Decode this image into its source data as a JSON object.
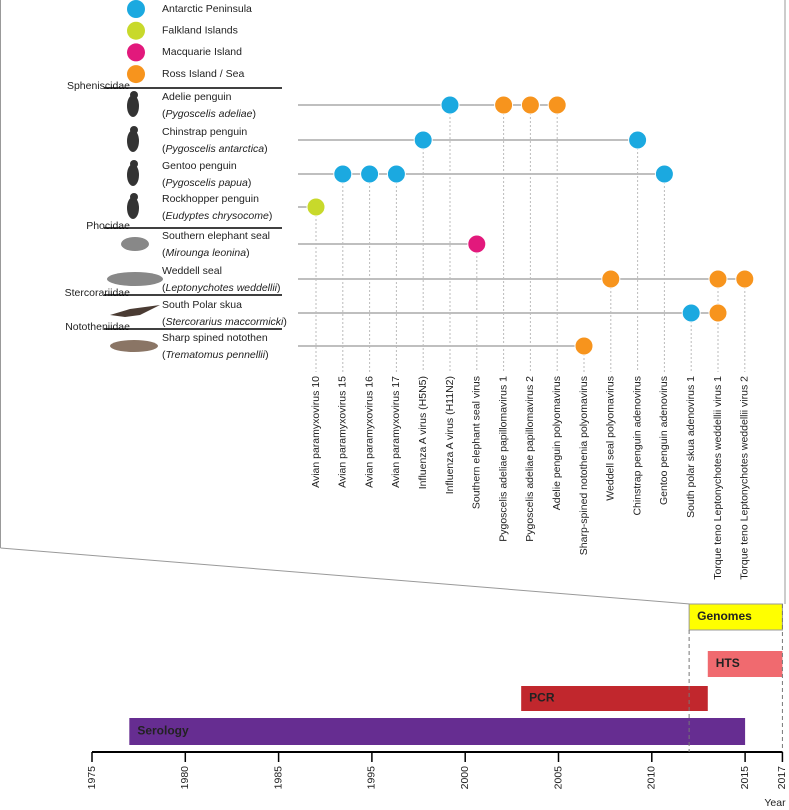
{
  "legend": [
    {
      "label": "Antarctic Peninsula",
      "color": "#1ba9e0"
    },
    {
      "label": "Falkland Islands",
      "color": "#c8d92b"
    },
    {
      "label": "Macquarie Island",
      "color": "#e2197c"
    },
    {
      "label": "Ross Island / Sea",
      "color": "#f7941d"
    }
  ],
  "viruses": [
    "Avian paramyxovirus 10",
    "Avian paramyxovirus 15",
    "Avian paramyxovirus 16",
    "Avian paramyxovirus 17",
    "Influenza A virus (H5N5)",
    "Influenza A virus (H11N2)",
    "Southern elephant seal virus",
    "Pygoscelis adeliae papillomavirus 1",
    "Pygoscelis adeliae papillomavirus 2",
    "Adelie penguin polyomavirus",
    "Sharp-spined notothenia polyomavirus",
    "Weddell seal polyomavirus",
    "Chinstrap penguin adenovirus",
    "Gentoo penguin adenovirus",
    "South polar skua adenovirus 1",
    "Torque teno Leptonychotes weddellii virus 1",
    "Torque teno Leptonychotes weddellii virus 2"
  ],
  "families": [
    {
      "name": "Spheniscidae",
      "species": [
        {
          "common": "Adelie penguin",
          "latin": "Pygoscelis adeliae",
          "detections": [
            {
              "virus": "Influenza A virus (H11N2)",
              "location": "Antarctic Peninsula"
            },
            {
              "virus": "Pygoscelis adeliae papillomavirus 1",
              "location": "Ross Island / Sea"
            },
            {
              "virus": "Pygoscelis adeliae papillomavirus 2",
              "location": "Ross Island / Sea"
            },
            {
              "virus": "Adelie penguin polyomavirus",
              "location": "Ross Island / Sea"
            }
          ]
        },
        {
          "common": "Chinstrap penguin",
          "latin": "Pygoscelis antarctica",
          "detections": [
            {
              "virus": "Influenza A virus (H5N5)",
              "location": "Antarctic Peninsula"
            },
            {
              "virus": "Chinstrap penguin adenovirus",
              "location": "Antarctic Peninsula"
            }
          ]
        },
        {
          "common": "Gentoo penguin",
          "latin": "Pygoscelis papua",
          "detections": [
            {
              "virus": "Avian paramyxovirus 15",
              "location": "Antarctic Peninsula"
            },
            {
              "virus": "Avian paramyxovirus 16",
              "location": "Antarctic Peninsula"
            },
            {
              "virus": "Avian paramyxovirus 17",
              "location": "Antarctic Peninsula"
            },
            {
              "virus": "Gentoo penguin adenovirus",
              "location": "Antarctic Peninsula"
            }
          ]
        },
        {
          "common": "Rockhopper penguin",
          "latin": "Eudyptes chrysocome",
          "detections": [
            {
              "virus": "Avian paramyxovirus 10",
              "location": "Falkland Islands"
            }
          ]
        }
      ]
    },
    {
      "name": "Phocidae",
      "species": [
        {
          "common": "Southern elephant seal",
          "latin": "Mirounga leonina",
          "detections": [
            {
              "virus": "Southern elephant seal virus",
              "location": "Macquarie Island"
            }
          ]
        },
        {
          "common": "Weddell seal",
          "latin": "Leptonychotes weddellii",
          "detections": [
            {
              "virus": "Weddell seal polyomavirus",
              "location": "Ross Island / Sea"
            },
            {
              "virus": "Torque teno Leptonychotes weddellii virus 1",
              "location": "Ross Island / Sea"
            },
            {
              "virus": "Torque teno Leptonychotes weddellii virus 2",
              "location": "Ross Island / Sea"
            }
          ]
        }
      ]
    },
    {
      "name": "Stercorariidae",
      "species": [
        {
          "common": "South Polar skua",
          "latin": "Stercorarius maccormicki",
          "detections": [
            {
              "virus": "South polar skua adenovirus 1",
              "location": "Antarctic Peninsula"
            },
            {
              "virus": "Torque teno Leptonychotes weddellii virus 1",
              "location": "Ross Island / Sea"
            }
          ]
        }
      ]
    },
    {
      "name": "Nototheniidae",
      "species": [
        {
          "common": "Sharp spined notothen",
          "latin": "Trematomus pennellii",
          "detections": [
            {
              "virus": "Sharp-spined notothenia polyomavirus",
              "location": "Ross Island / Sea"
            }
          ]
        }
      ]
    }
  ],
  "timeline": {
    "axis_label": "Year",
    "ticks": [
      1975,
      1980,
      1985,
      1995,
      2000,
      2005,
      2010,
      2015,
      2017
    ],
    "methods": [
      {
        "label": "Genomes",
        "start": 2012,
        "end": 2017,
        "color": "#ffff00",
        "text_color": "#000000"
      },
      {
        "label": "HTS",
        "start": 2013,
        "end": 2017,
        "color": "#f06a6f",
        "text_color": "#ffffff"
      },
      {
        "label": "PCR",
        "start": 2003,
        "end": 2013,
        "color": "#c1272d",
        "text_color": "#ffffff"
      },
      {
        "label": "Serology",
        "start": 1977,
        "end": 2015,
        "color": "#662d91",
        "text_color": "#ffffff"
      }
    ]
  }
}
